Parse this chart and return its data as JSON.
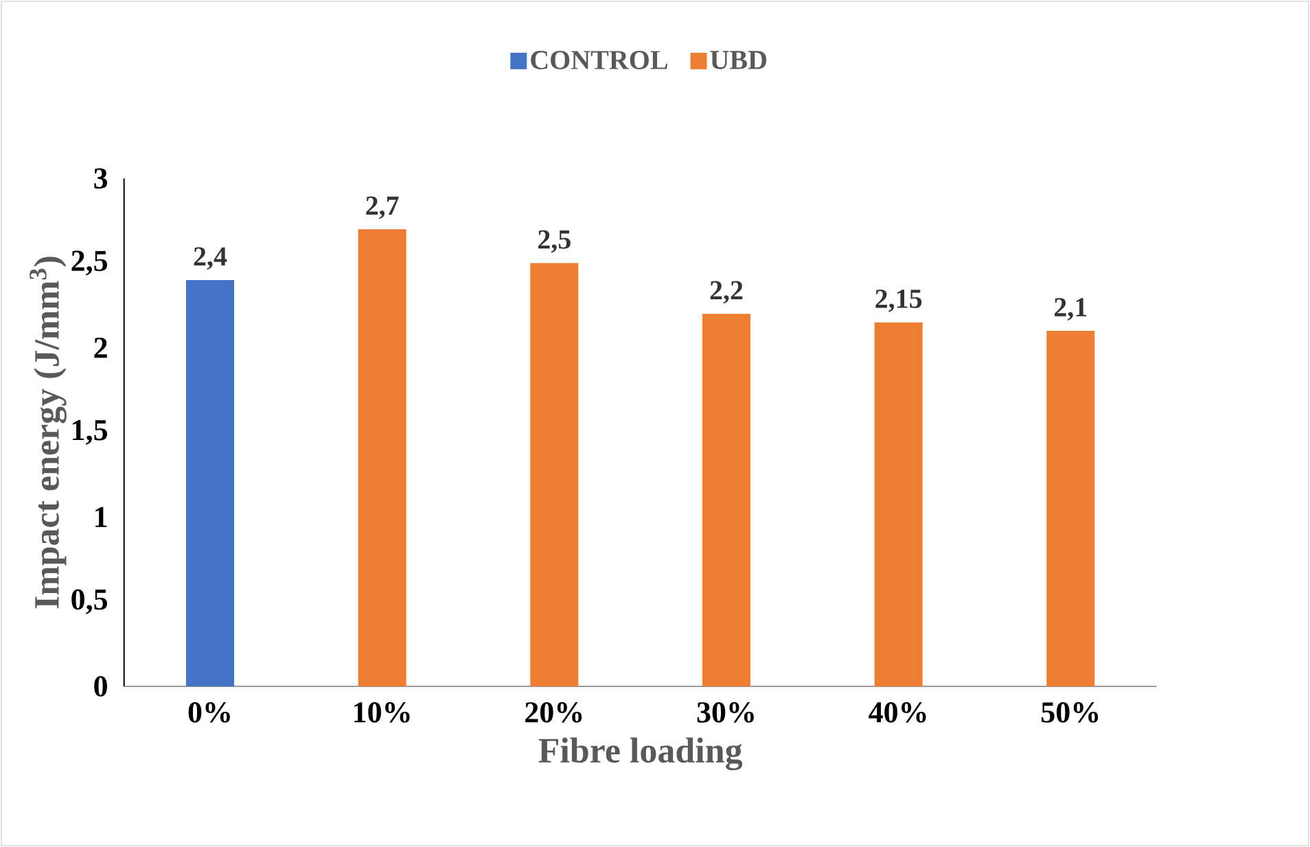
{
  "chart_data": {
    "type": "bar",
    "xlabel": "Fibre loading",
    "ylabel": "Impact energy (J/mm$^{3}$)",
    "categories": [
      "0%",
      "10%",
      "20%",
      "30%",
      "40%",
      "50%"
    ],
    "series": [
      {
        "name": "CONTROL",
        "color": "#4472c4",
        "values": [
          2.4,
          null,
          null,
          null,
          null,
          null
        ],
        "value_labels": [
          "2,4",
          null,
          null,
          null,
          null,
          null
        ]
      },
      {
        "name": "UBD",
        "color": "#ed7d31",
        "values": [
          null,
          2.7,
          2.5,
          2.2,
          2.15,
          2.1
        ],
        "value_labels": [
          null,
          "2,7",
          "2,5",
          "2,2",
          "2,15",
          "2,1"
        ]
      }
    ],
    "ylim": [
      0,
      3
    ],
    "yticks": [
      0,
      {
        "value": 0.5,
        "label": "0,5"
      },
      1,
      {
        "value": 1.5,
        "label": "1,5"
      },
      2,
      {
        "value": 2.5,
        "label": "2,5"
      },
      3
    ],
    "legend": "top",
    "grid": false
  }
}
